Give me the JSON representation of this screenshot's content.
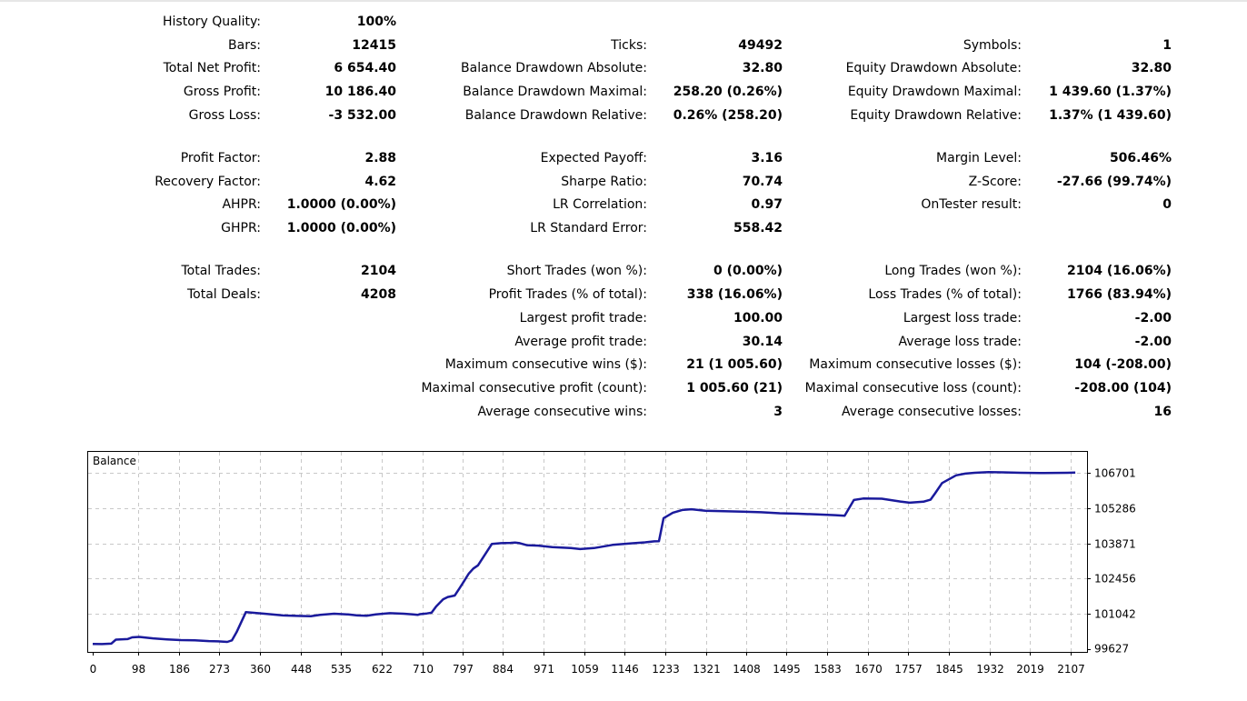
{
  "report": {
    "history_quality": {
      "label": "History Quality:",
      "value": "100%"
    },
    "col1": [
      {
        "label": "Bars:",
        "value": "12415"
      },
      {
        "label": "Total Net Profit:",
        "value": "6 654.40"
      },
      {
        "label": "Gross Profit:",
        "value": "10 186.40"
      },
      {
        "label": "Gross Loss:",
        "value": "-3 532.00"
      },
      {
        "label": "Profit Factor:",
        "value": "2.88"
      },
      {
        "label": "Recovery Factor:",
        "value": "4.62"
      },
      {
        "label": "AHPR:",
        "value": "1.0000 (0.00%)"
      },
      {
        "label": "GHPR:",
        "value": "1.0000 (0.00%)"
      },
      {
        "label": "Total Trades:",
        "value": "2104"
      },
      {
        "label": "Total Deals:",
        "value": "4208"
      }
    ],
    "col2": [
      {
        "label": "Ticks:",
        "value": "49492"
      },
      {
        "label": "Balance Drawdown Absolute:",
        "value": "32.80"
      },
      {
        "label": "Balance Drawdown Maximal:",
        "value": "258.20 (0.26%)"
      },
      {
        "label": "Balance Drawdown Relative:",
        "value": "0.26% (258.20)"
      },
      {
        "label": "Expected Payoff:",
        "value": "3.16"
      },
      {
        "label": "Sharpe Ratio:",
        "value": "70.74"
      },
      {
        "label": "LR Correlation:",
        "value": "0.97"
      },
      {
        "label": "LR Standard Error:",
        "value": "558.42"
      },
      {
        "label": "Short Trades (won %):",
        "value": "0 (0.00%)"
      },
      {
        "label": "Profit Trades (% of total):",
        "value": "338 (16.06%)"
      },
      {
        "label": "Largest profit trade:",
        "value": "100.00"
      },
      {
        "label": "Average profit trade:",
        "value": "30.14"
      },
      {
        "label": "Maximum consecutive wins ($):",
        "value": "21 (1 005.60)"
      },
      {
        "label": "Maximal consecutive profit (count):",
        "value": "1 005.60 (21)"
      },
      {
        "label": "Average consecutive wins:",
        "value": "3"
      }
    ],
    "col3": [
      {
        "label": "Symbols:",
        "value": "1"
      },
      {
        "label": "Equity Drawdown Absolute:",
        "value": "32.80"
      },
      {
        "label": "Equity Drawdown Maximal:",
        "value": "1 439.60 (1.37%)"
      },
      {
        "label": "Equity Drawdown Relative:",
        "value": "1.37% (1 439.60)"
      },
      {
        "label": "Margin Level:",
        "value": "506.46%"
      },
      {
        "label": "Z-Score:",
        "value": "-27.66 (99.74%)"
      },
      {
        "label": "OnTester result:",
        "value": "0"
      },
      {
        "label": "Long Trades (won %):",
        "value": "2104 (16.06%)"
      },
      {
        "label": "Loss Trades (% of total):",
        "value": "1766 (83.94%)"
      },
      {
        "label": "Largest loss trade:",
        "value": "-2.00"
      },
      {
        "label": "Average loss trade:",
        "value": "-2.00"
      },
      {
        "label": "Maximum consecutive losses ($):",
        "value": "104 (-208.00)"
      },
      {
        "label": "Maximal consecutive loss (count):",
        "value": "-208.00 (104)"
      },
      {
        "label": "Average consecutive losses:",
        "value": "16"
      }
    ]
  },
  "chart_data": {
    "type": "line",
    "title": "Balance",
    "x_ticks": [
      0,
      98,
      186,
      273,
      360,
      448,
      535,
      622,
      710,
      797,
      884,
      971,
      1059,
      1146,
      1233,
      1321,
      1408,
      1495,
      1583,
      1670,
      1757,
      1845,
      1932,
      2019,
      2107
    ],
    "y_ticks": [
      99627,
      101042,
      102456,
      103871,
      105286,
      106701
    ],
    "xlim": [
      0,
      2120
    ],
    "ylim": [
      99627,
      107250
    ],
    "grid": true,
    "line_color": "#1a1a9c",
    "series": [
      {
        "x": [
          0,
          20,
          40,
          50,
          75,
          85,
          100,
          130,
          160,
          190,
          220,
          250,
          270,
          290,
          300,
          310,
          330,
          370,
          410,
          440,
          470,
          490,
          520,
          550,
          570,
          590,
          610,
          640,
          670,
          690,
          700,
          705,
          720,
          730,
          740,
          750,
          755,
          765,
          770,
          780,
          790,
          800,
          810,
          820,
          830,
          860,
          880,
          900,
          910,
          920,
          935,
          960,
          990,
          1010,
          1030,
          1050,
          1080,
          1120,
          1160,
          1190,
          1210,
          1220,
          1230,
          1250,
          1270,
          1290,
          1320,
          1360,
          1400,
          1440,
          1480,
          1520,
          1560,
          1600,
          1620,
          1640,
          1660,
          1700,
          1740,
          1760,
          1790,
          1805,
          1815,
          1830,
          1860,
          1880,
          1900,
          1930,
          1960,
          2000,
          2050,
          2100,
          2117
        ],
        "y": [
          99840,
          99830,
          99850,
          100010,
          100030,
          100100,
          100120,
          100060,
          100020,
          99990,
          99980,
          99950,
          99940,
          99920,
          99980,
          100310,
          101110,
          101050,
          100980,
          100960,
          100950,
          101000,
          101050,
          101020,
          100980,
          100970,
          101020,
          101070,
          101050,
          101020,
          101000,
          101030,
          101060,
          101090,
          101340,
          101530,
          101630,
          101720,
          101740,
          101780,
          102060,
          102350,
          102650,
          102860,
          102990,
          103850,
          103880,
          103890,
          103900,
          103880,
          103800,
          103780,
          103720,
          103700,
          103680,
          103640,
          103680,
          103810,
          103870,
          103910,
          103950,
          103960,
          104880,
          105100,
          105210,
          105240,
          105180,
          105160,
          105140,
          105120,
          105080,
          105060,
          105030,
          105000,
          104980,
          105610,
          105670,
          105660,
          105550,
          105500,
          105540,
          105620,
          105880,
          106290,
          106600,
          106670,
          106700,
          106730,
          106720,
          106700,
          106690,
          106700,
          106710
        ]
      }
    ]
  }
}
